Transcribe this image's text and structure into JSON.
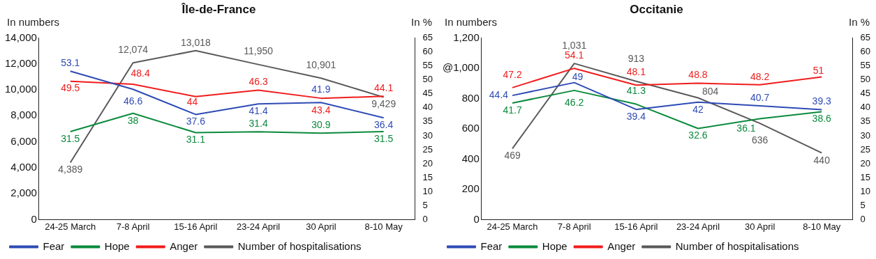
{
  "chart_data": [
    {
      "type": "line",
      "title": "Île-de-France",
      "ylabel": "In numbers",
      "y2label": "In %",
      "categories": [
        "24-25 March",
        "7-8 April",
        "15-16 April",
        "23-24 April",
        "30 April",
        "8-10 May"
      ],
      "series": [
        {
          "name": "Fear",
          "color": "#2e4bb5",
          "axis": "y2",
          "values": [
            53.1,
            46.6,
            37.6,
            41.4,
            41.9,
            36.4
          ]
        },
        {
          "name": "Hope",
          "color": "#0a8a3c",
          "axis": "y2",
          "values": [
            31.5,
            38,
            31.1,
            31.4,
            30.9,
            31.5
          ]
        },
        {
          "name": "Anger",
          "color": "#f01c1c",
          "axis": "y2",
          "values": [
            49.5,
            48.4,
            44,
            46.3,
            43.4,
            44.1
          ]
        },
        {
          "name": "Number of hospitalisations",
          "color": "#595959",
          "axis": "y",
          "values": [
            4389,
            12074,
            13018,
            11950,
            10901,
            9429
          ],
          "value_labels": [
            "4,389",
            "12,074",
            "13,018",
            "11,950",
            "10,901",
            "9,429"
          ]
        }
      ],
      "ylim": [
        0,
        14000
      ],
      "yticks": [
        {
          "value": 0,
          "label": "0"
        },
        {
          "value": 2000,
          "label": "2,000"
        },
        {
          "value": 4000,
          "label": "4,000"
        },
        {
          "value": 6000,
          "label": "6,000"
        },
        {
          "value": 8000,
          "label": "8,000"
        },
        {
          "value": 10000,
          "label": "10,000"
        },
        {
          "value": 12000,
          "label": "12,000"
        },
        {
          "value": 14000,
          "label": "14,000"
        }
      ],
      "y2lim": [
        0,
        65
      ],
      "y2ticks": [
        0,
        5,
        10,
        15,
        20,
        25,
        30,
        35,
        40,
        45,
        50,
        55,
        60,
        65
      ],
      "data_labels": true,
      "legend": "bottom",
      "grid": false,
      "marker": "none",
      "line_style": "solid"
    },
    {
      "type": "line",
      "title": "Occitanie",
      "ylabel": "In numbers",
      "y2label": "In %",
      "categories": [
        "24-25 March",
        "7-8 April",
        "15-16 April",
        "23-24 April",
        "30 April",
        "8-10 May"
      ],
      "series": [
        {
          "name": "Fear",
          "color": "#2e4bb5",
          "axis": "y2",
          "values": [
            44.4,
            49,
            39.4,
            42,
            40.7,
            39.3
          ]
        },
        {
          "name": "Hope",
          "color": "#0a8a3c",
          "axis": "y2",
          "values": [
            41.7,
            46.2,
            41.3,
            32.6,
            36.1,
            38.6
          ]
        },
        {
          "name": "Anger",
          "color": "#f01c1c",
          "axis": "y2",
          "values": [
            47.2,
            54.1,
            48.1,
            48.8,
            48.2,
            51
          ]
        },
        {
          "name": "Number of hospitalisations",
          "color": "#595959",
          "axis": "y",
          "values": [
            469,
            1031,
            913,
            804,
            636,
            440
          ],
          "value_labels": [
            "469",
            "1,031",
            "913",
            "804",
            "636",
            "440"
          ]
        }
      ],
      "ylim": [
        0,
        1200
      ],
      "yticks": [
        {
          "value": 0,
          "label": "0"
        },
        {
          "value": 200,
          "label": "200"
        },
        {
          "value": 400,
          "label": "400"
        },
        {
          "value": 600,
          "label": "600"
        },
        {
          "value": 800,
          "label": "800"
        },
        {
          "value": 1000,
          "label": "@1,000"
        },
        {
          "value": 1200,
          "label": "1,200"
        }
      ],
      "y2lim": [
        0,
        65
      ],
      "y2ticks": [
        0,
        5,
        10,
        15,
        20,
        25,
        30,
        35,
        40,
        45,
        50,
        55,
        60,
        65
      ],
      "data_labels": true,
      "legend": "bottom",
      "grid": false,
      "marker": "none",
      "line_style": "solid"
    }
  ]
}
